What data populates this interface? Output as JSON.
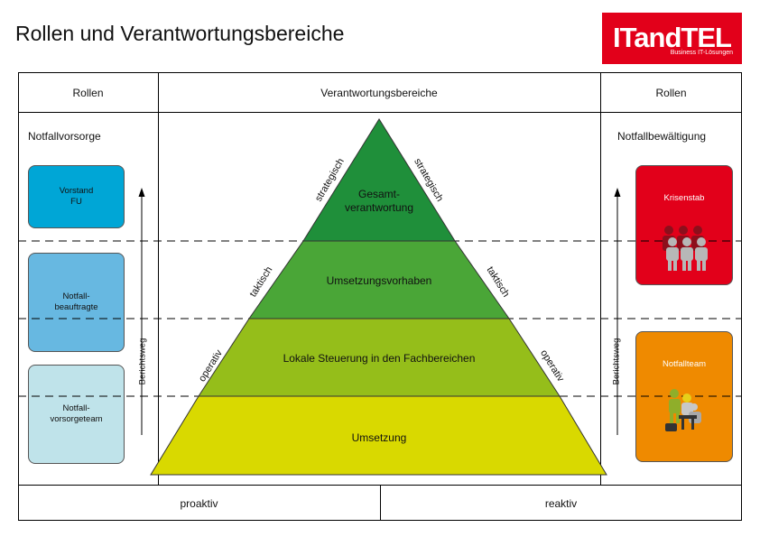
{
  "page_title": "Rollen und Verantwortungsbereiche",
  "logo": {
    "brand": "ITandTEL",
    "tagline": "Business IT-Lösungen",
    "color": "#e2001a"
  },
  "header": {
    "left": "Rollen",
    "center": "Verantwortungsbereiche",
    "right": "Rollen"
  },
  "left": {
    "section": "Notfallvorsorge",
    "roles": [
      {
        "label": "Vorstand\nFU",
        "color": "#00a6d6"
      },
      {
        "label": "Notfall-\nbeauftragte",
        "color": "#67b8e1"
      },
      {
        "label": "Notfall-\nvorsorgeteam",
        "color": "#bfe3ea"
      }
    ],
    "arrow_label": "Berichtsweg"
  },
  "right": {
    "section": "Notfallbewältigung",
    "roles": [
      {
        "label": "Krisenstab",
        "color": "#e2001a"
      },
      {
        "label": "Notfallteam",
        "color": "#ef8a00"
      }
    ],
    "arrow_label": "Berichtsweg"
  },
  "pyramid": {
    "levels": [
      {
        "label": "Gesamt-\nverantwortung",
        "color": "#1f8f3a"
      },
      {
        "label": "Umsetzungsvorhaben",
        "color": "#4aa637"
      },
      {
        "label": "Lokale Steuerung in den Fachbereichen",
        "color": "#95be1a"
      },
      {
        "label": "Umsetzung",
        "color": "#d9d900"
      }
    ],
    "side_labels": [
      "strategisch",
      "taktisch",
      "operativ"
    ]
  },
  "footer": {
    "left": "proaktiv",
    "right": "reaktiv"
  }
}
